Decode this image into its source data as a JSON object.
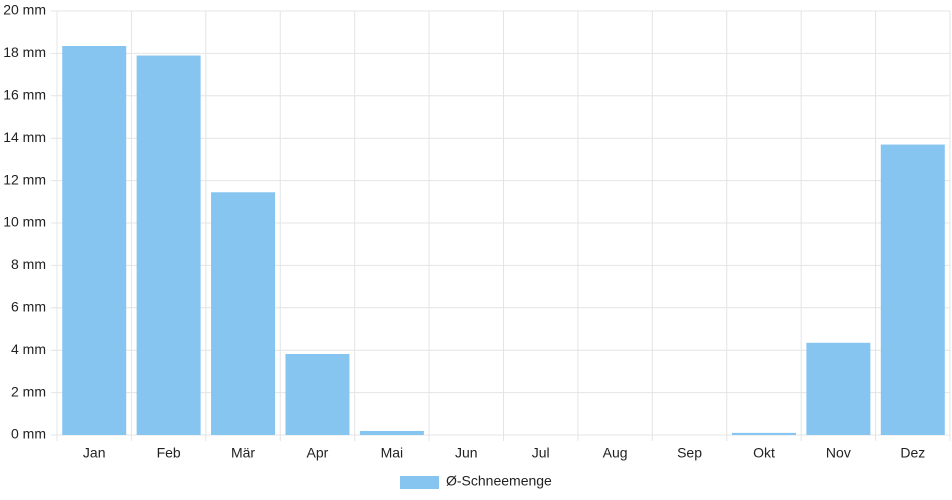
{
  "chart_data": {
    "type": "bar",
    "categories": [
      "Jan",
      "Feb",
      "Mär",
      "Apr",
      "Mai",
      "Jun",
      "Jul",
      "Aug",
      "Sep",
      "Okt",
      "Nov",
      "Dez"
    ],
    "series": [
      {
        "name": "Ø-Schneemenge",
        "color": "#87c5f1",
        "values": [
          18.35,
          17.9,
          11.45,
          3.82,
          0.19,
          0,
          0,
          0,
          0,
          0.1,
          4.35,
          13.7
        ]
      }
    ],
    "ylim": [
      0,
      20
    ],
    "yticks": [
      {
        "value": 0,
        "label": "0 mm"
      },
      {
        "value": 2,
        "label": "2 mm"
      },
      {
        "value": 4,
        "label": "4 mm"
      },
      {
        "value": 6,
        "label": "6 mm"
      },
      {
        "value": 8,
        "label": "8 mm"
      },
      {
        "value": 10,
        "label": "10 mm"
      },
      {
        "value": 12,
        "label": "12 mm"
      },
      {
        "value": 14,
        "label": "14 mm"
      },
      {
        "value": 16,
        "label": "16 mm"
      },
      {
        "value": 18,
        "label": "18 mm"
      },
      {
        "value": 20,
        "label": "20 mm"
      }
    ],
    "grid": true,
    "legend": "bottom"
  }
}
